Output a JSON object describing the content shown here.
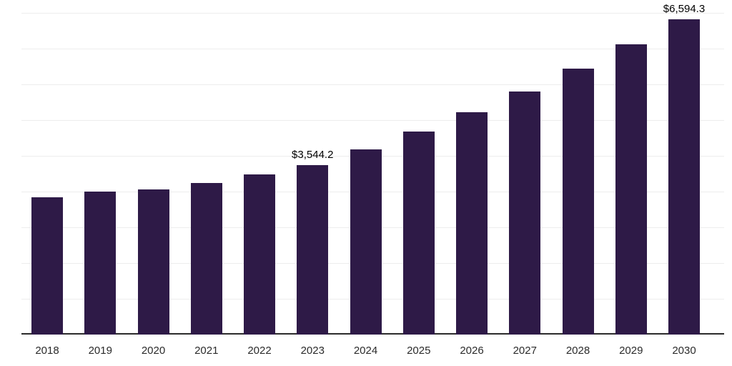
{
  "chart_data": {
    "type": "bar",
    "title": "",
    "categories": [
      "2018",
      "2019",
      "2020",
      "2021",
      "2022",
      "2023",
      "2024",
      "2025",
      "2026",
      "2027",
      "2028",
      "2029",
      "2030"
    ],
    "values": [
      2870,
      2990,
      3030,
      3170,
      3350,
      3544.2,
      3880,
      4250,
      4650,
      5080,
      5570,
      6070,
      6594.3
    ],
    "annotations": [
      {
        "category": "2023",
        "text": "$3,544.2"
      },
      {
        "category": "2030",
        "text": "$6,594.3"
      }
    ],
    "xlabel": "",
    "ylabel": "",
    "ylim": [
      0,
      7000
    ],
    "grid": true,
    "legend": "none",
    "bar_color": "#2E1A47",
    "axis_line_color": "#2b2b2b",
    "gridline_color": "#ededed",
    "tick_label_color": "#2b2b2b"
  }
}
